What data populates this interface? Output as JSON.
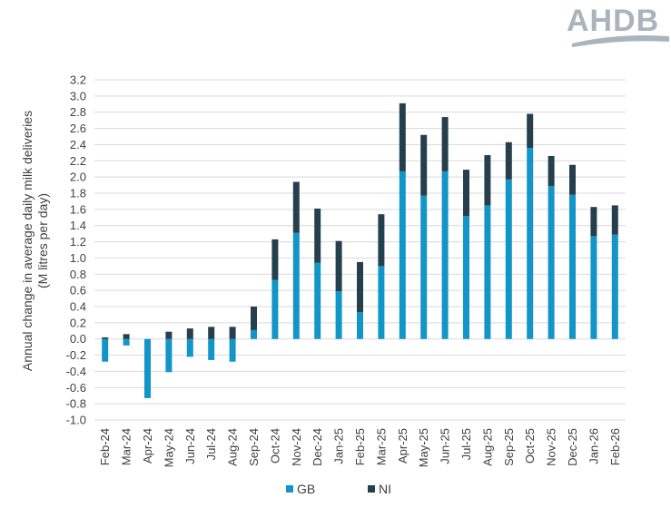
{
  "logo": {
    "text": "AHDB"
  },
  "chart_data": {
    "type": "bar",
    "stacked": true,
    "title": "",
    "xlabel": "",
    "ylabel_lines": [
      "Annual change in average daily milk deliveries",
      "(M litres per day)"
    ],
    "ylim": [
      -1.0,
      3.2
    ],
    "ytick_step": 0.2,
    "grid": true,
    "legend_position": "bottom",
    "categories": [
      "Feb-24",
      "Mar-24",
      "Apr-24",
      "May-24",
      "Jun-24",
      "Jul-24",
      "Aug-24",
      "Sep-24",
      "Oct-24",
      "Nov-24",
      "Dec-24",
      "Jan-25",
      "Feb-25",
      "Mar-25",
      "Apr-25",
      "May-25",
      "Jun-25",
      "Jul-25",
      "Aug-25",
      "Sep-25",
      "Oct-25",
      "Nov-25",
      "Dec-25",
      "Jan-26",
      "Feb-26"
    ],
    "series": [
      {
        "name": "GB",
        "color": "#1295c9",
        "values": [
          -0.28,
          -0.08,
          -0.73,
          -0.41,
          -0.22,
          -0.26,
          -0.28,
          0.11,
          0.73,
          1.31,
          0.94,
          0.59,
          0.33,
          0.9,
          2.07,
          1.77,
          2.07,
          1.52,
          1.65,
          1.97,
          2.36,
          1.89,
          1.78,
          1.27,
          1.29
        ]
      },
      {
        "name": "NI",
        "color": "#263f4c",
        "values": [
          0.02,
          0.06,
          0.0,
          0.09,
          0.13,
          0.15,
          0.15,
          0.29,
          0.5,
          0.63,
          0.67,
          0.62,
          0.62,
          0.64,
          0.84,
          0.75,
          0.67,
          0.57,
          0.62,
          0.46,
          0.42,
          0.37,
          0.37,
          0.36,
          0.36
        ]
      }
    ]
  }
}
